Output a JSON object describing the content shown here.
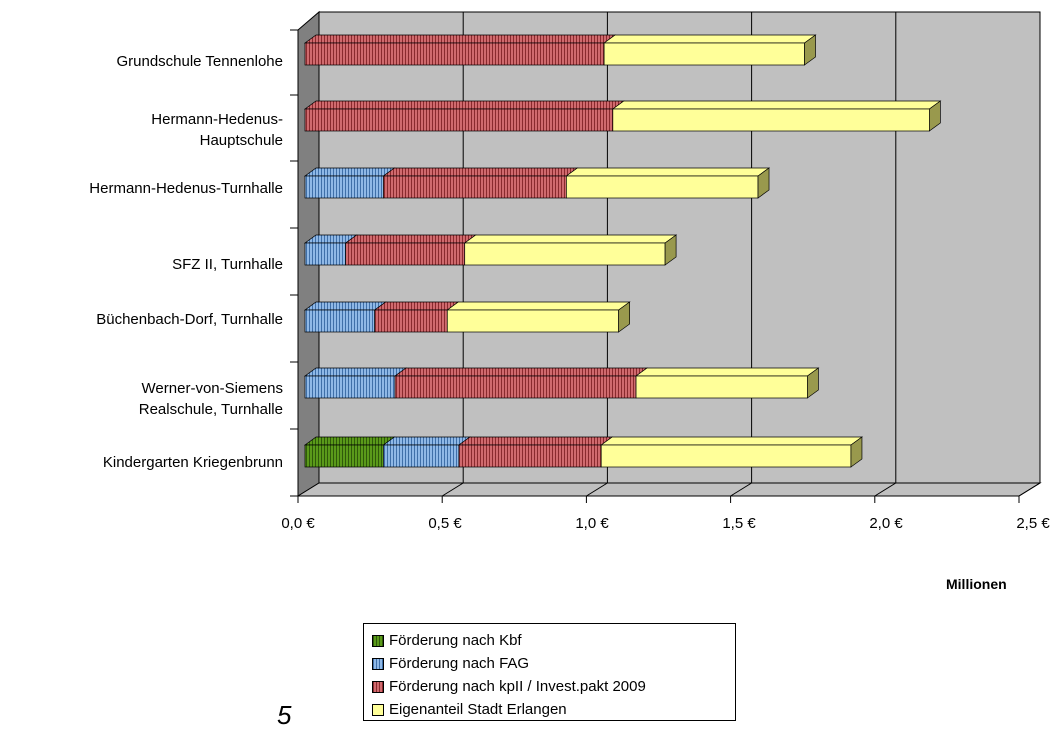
{
  "chart_data": {
    "type": "bar",
    "orientation": "horizontal",
    "stacked": true,
    "style": "3d",
    "categories": [
      "Kindergarten Kriegenbrunn",
      "Werner-von-Siemens\nRealschule, Turnhalle",
      "Büchenbach-Dorf, Turnhalle",
      "SFZ II, Turnhalle",
      "Hermann-Hedenus-Turnhalle",
      "Hermann-Hedenus-\nHauptschule",
      "Grundschule Tennenlohe"
    ],
    "series": [
      {
        "name": "Förderung nach Kbf",
        "color": "#5a9a1a",
        "values": [
          0.27,
          0,
          0,
          0,
          0,
          0,
          0
        ]
      },
      {
        "name": "Förderung nach FAG",
        "color": "#6f9fd6",
        "values": [
          0.26,
          0.31,
          0.24,
          0.14,
          0.27,
          0,
          0
        ]
      },
      {
        "name": "Förderung nach kpII / Invest.pakt 2009",
        "color": "#b9484c",
        "values": [
          0.49,
          0.83,
          0.25,
          0.41,
          0.63,
          1.06,
          1.03
        ]
      },
      {
        "name": "Eigenanteil Stadt Erlangen",
        "color": "#ffff99",
        "values": [
          0.86,
          0.59,
          0.59,
          0.69,
          0.66,
          1.09,
          0.69
        ]
      }
    ],
    "xlim": [
      0,
      2.5
    ],
    "xticks": [
      0,
      0.5,
      1.0,
      1.5,
      2.0,
      2.5
    ],
    "xtick_labels": [
      "0,0 €",
      "0,5 €",
      "1,0 €",
      "1,5 €",
      "2,0 €",
      "2,5 €"
    ],
    "unit_label": "Millionen",
    "grid": true,
    "legend_position": "bottom"
  },
  "stray_mark": "5"
}
